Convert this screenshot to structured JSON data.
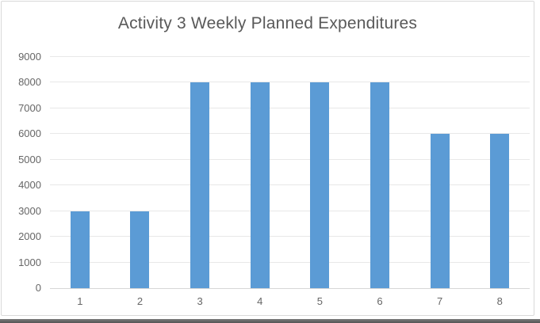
{
  "window": {
    "background": "#ffffff",
    "frame_border_color": "#d9d9d9",
    "bottom_edge_color": "#5f5f5f"
  },
  "chart_data": {
    "type": "bar",
    "title": "Activity 3 Weekly Planned Expenditures",
    "categories": [
      "1",
      "2",
      "3",
      "4",
      "5",
      "6",
      "7",
      "8"
    ],
    "values": [
      3000,
      3000,
      8000,
      8000,
      8000,
      8000,
      6000,
      6000
    ],
    "xlabel": "",
    "ylabel": "",
    "ylim": [
      0,
      9000
    ],
    "ytick_step": 1000,
    "yticks": [
      0,
      1000,
      2000,
      3000,
      4000,
      5000,
      6000,
      7000,
      8000,
      9000
    ],
    "grid": true,
    "legend_position": "none",
    "bar_color": "#5b9bd5",
    "gridline_color": "#e8e8e8",
    "axis_line_color": "#d6d6d6",
    "title_color": "#595959",
    "tick_label_color": "#666666"
  }
}
